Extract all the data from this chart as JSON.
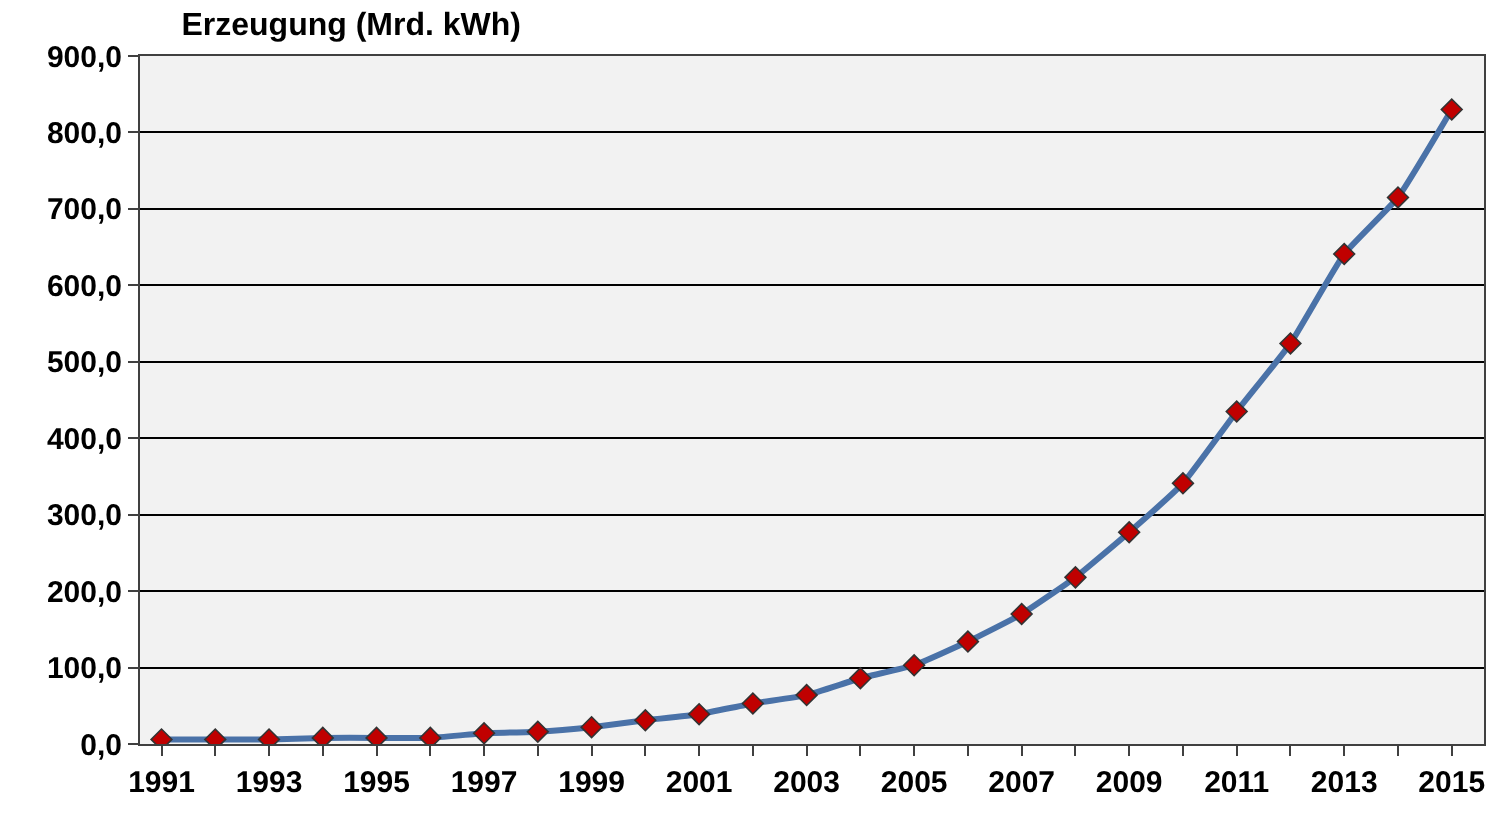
{
  "chart_data": {
    "type": "line",
    "title": "Erzeugung (Mrd. kWh)",
    "x": [
      1991,
      1992,
      1993,
      1994,
      1995,
      1996,
      1997,
      1998,
      1999,
      2000,
      2001,
      2002,
      2003,
      2004,
      2005,
      2006,
      2007,
      2008,
      2009,
      2010,
      2011,
      2012,
      2013,
      2014,
      2015
    ],
    "series": [
      {
        "color": "#4a72a8",
        "colors": [
          "#c00000",
          "#c00000",
          "#c00000",
          "#c00000",
          "#c00000",
          "#c00000",
          "#c00000",
          "#c00000",
          "#c00000",
          "#c00000",
          "#c00000",
          "#c00000",
          "#c00000",
          "#c00000",
          "#c00000",
          "#c00000",
          "#c00000",
          "#c00000",
          "#c00000",
          "#c00000",
          "#c00000",
          "#c00000",
          "#c00000",
          "#c00000",
          "#c00000"
        ],
        "values": [
          6,
          6,
          6,
          8,
          8,
          8,
          14,
          16,
          22,
          31,
          39,
          53,
          64,
          86,
          103,
          134,
          170,
          218,
          277,
          341,
          435,
          524,
          641,
          715,
          830
        ]
      }
    ],
    "xlim": [
      1990.6,
      2015.6
    ],
    "xticks": [
      1991,
      {
        "value": 1992,
        "label": null
      },
      1993,
      {
        "value": 1994,
        "label": null
      },
      1995,
      {
        "value": 1996,
        "label": null
      },
      1997,
      {
        "value": 1998,
        "label": null
      },
      1999,
      {
        "value": 2000,
        "label": null
      },
      2001,
      {
        "value": 2002,
        "label": null
      },
      2003,
      {
        "value": 2004,
        "label": null
      },
      2005,
      {
        "value": 2006,
        "label": null
      },
      2007,
      {
        "value": 2008,
        "label": null
      },
      2009,
      {
        "value": 2010,
        "label": null
      },
      2011,
      {
        "value": 2012,
        "label": null
      },
      2013,
      {
        "value": 2014,
        "label": null
      },
      2015
    ],
    "ylim": [
      0,
      900
    ],
    "yticks": [
      {
        "value": 0,
        "label": "0,0"
      },
      {
        "value": 100,
        "label": "100,0"
      },
      {
        "value": 200,
        "label": "200,0"
      },
      {
        "value": 300,
        "label": "300,0"
      },
      {
        "value": 400,
        "label": "400,0"
      },
      {
        "value": 500,
        "label": "500,0"
      },
      {
        "value": 600,
        "label": "600,0"
      },
      {
        "value": 700,
        "label": "700,0"
      },
      {
        "value": 800,
        "label": "800,0"
      },
      {
        "value": 900,
        "label": "900,0"
      }
    ],
    "grid": "y",
    "marker": "diamond",
    "line_style": "solid"
  }
}
